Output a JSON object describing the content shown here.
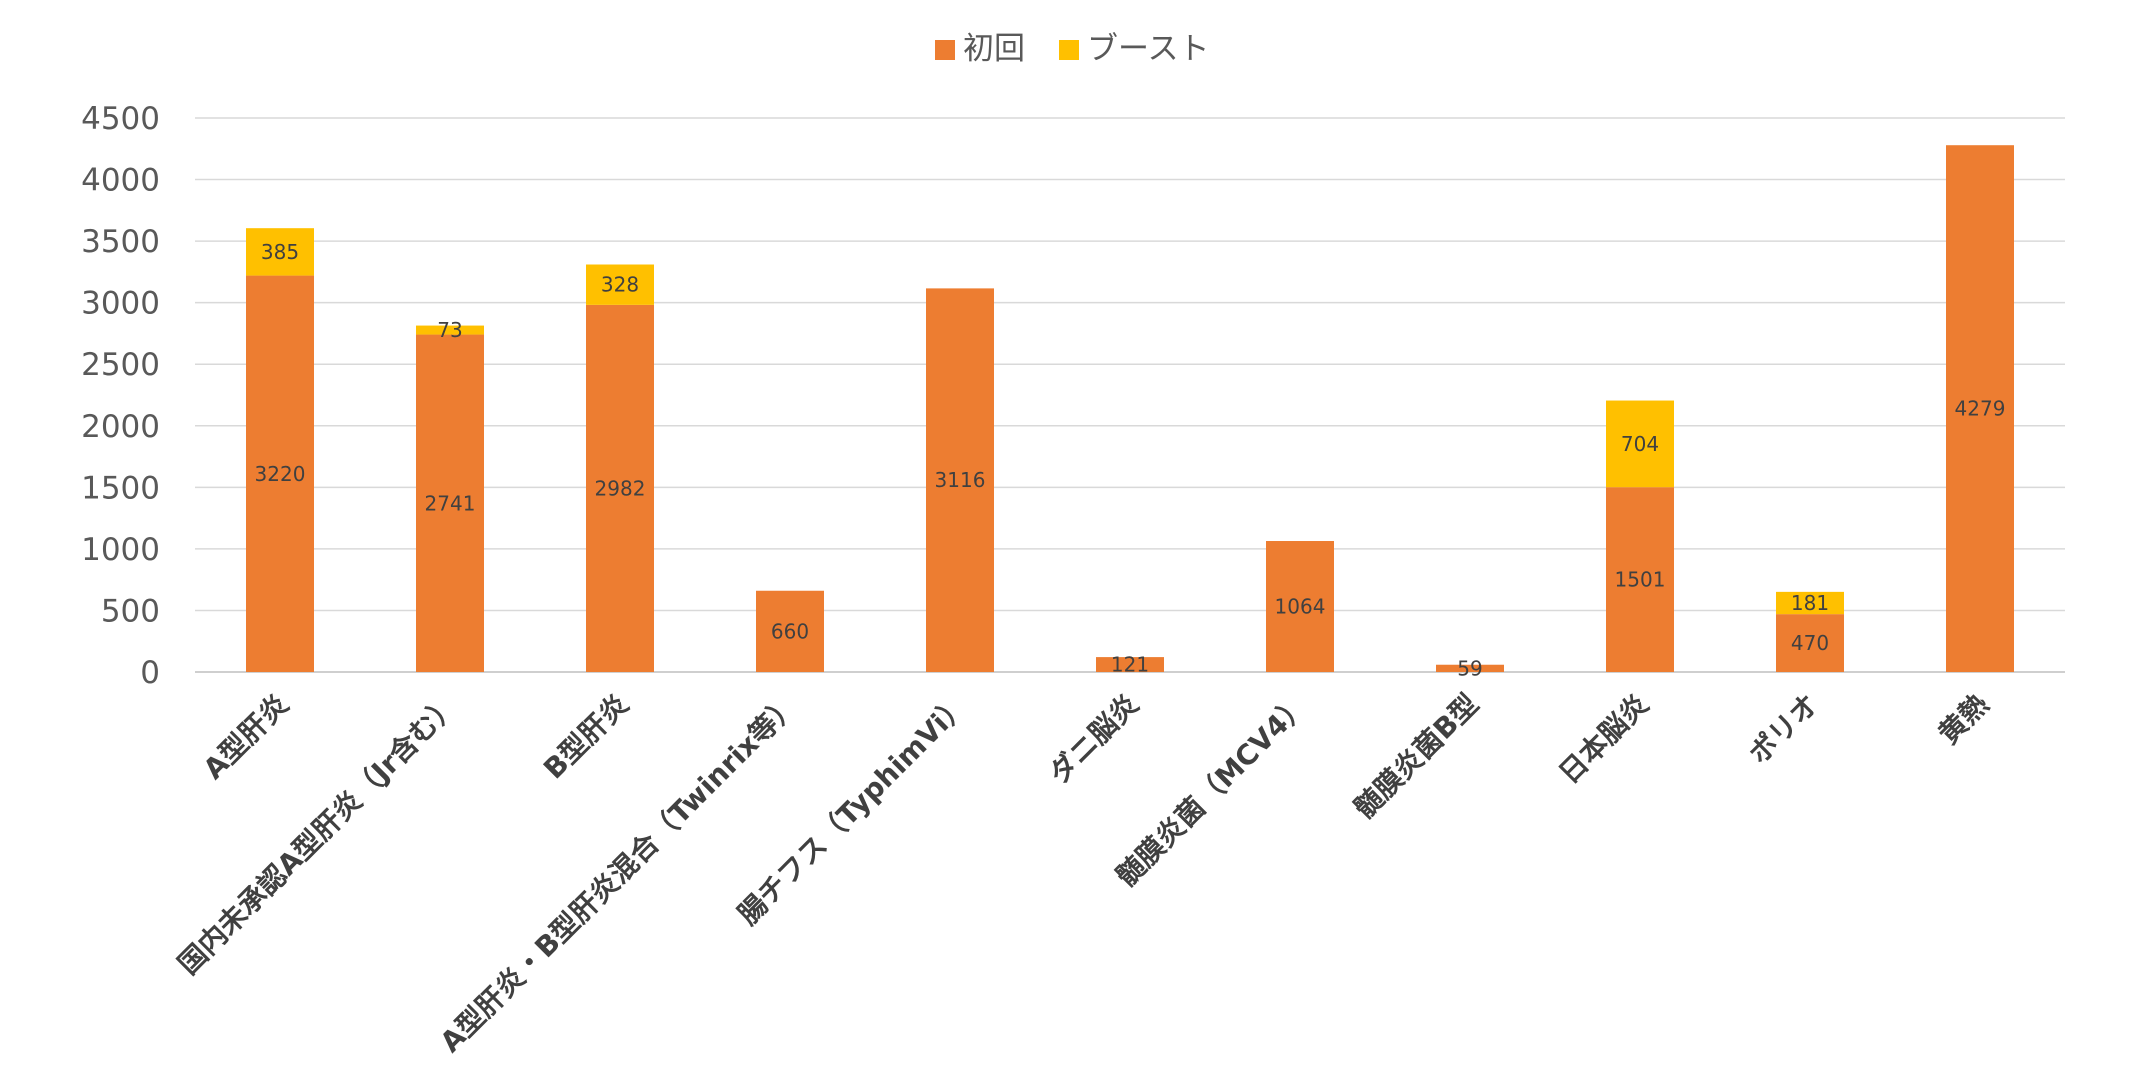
{
  "chart_data": {
    "type": "bar",
    "stacked": true,
    "categories": [
      "A型肝炎",
      "国内未承認A型肝炎（Jr含む）",
      "B型肝炎",
      "A型肝炎・B型肝炎混合（Twinrix等）",
      "腸チフス（TyphimVi）",
      "ダニ脳炎",
      "髄膜炎菌（MCV4）",
      "髄膜炎菌B型",
      "日本脳炎",
      "ポリオ",
      "黄熱"
    ],
    "series": [
      {
        "name": "初回",
        "color": "#ED7D31",
        "values": [
          3220,
          2741,
          2982,
          660,
          3116,
          121,
          1064,
          59,
          1501,
          470,
          4279
        ],
        "labels": [
          "3220",
          "2741",
          "2982",
          "660",
          "3116",
          "121",
          "1064",
          "59",
          "1501",
          "470",
          "4279"
        ]
      },
      {
        "name": "ブースト",
        "color": "#FFC000",
        "values": [
          385,
          73,
          328,
          0,
          0,
          0,
          0,
          0,
          704,
          181,
          0
        ],
        "labels": [
          "385",
          "73",
          "328",
          "",
          "",
          "",
          "",
          "",
          "704",
          "181",
          ""
        ]
      }
    ],
    "ylim": [
      0,
      4500
    ],
    "yticks": [
      "0",
      "500",
      "1000",
      "1500",
      "2000",
      "2500",
      "3000",
      "3500",
      "4000",
      "4500"
    ],
    "ytick_values": [
      0,
      500,
      1000,
      1500,
      2000,
      2500,
      3000,
      3500,
      4000,
      4500
    ],
    "grid": true,
    "legend_position": "top",
    "title": "",
    "xlabel": "",
    "ylabel": ""
  }
}
